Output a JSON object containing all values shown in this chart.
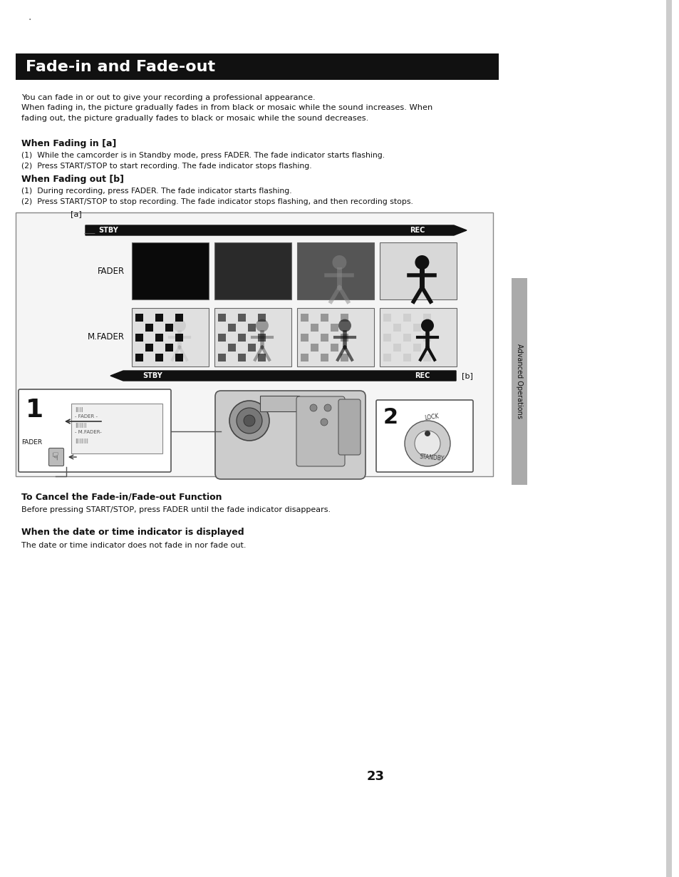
{
  "page_bg": "#ffffff",
  "title_bg": "#111111",
  "title_text": "Fade-in and Fade-out",
  "title_color": "#ffffff",
  "title_fontsize": 16,
  "body_text_intro": "You can fade in or out to give your recording a professional appearance.\nWhen fading in, the picture gradually fades in from black or mosaic while the sound increases. When\nfading out, the picture gradually fades to black or mosaic while the sound decreases.",
  "section1_title": "When Fading in [a]",
  "section1_body1": "(1)  While the camcorder is in Standby mode, press FADER. The fade indicator starts flashing.",
  "section1_body2": "(2)  Press START/STOP to start recording. The fade indicator stops flashing.",
  "section2_title": "When Fading out [b]",
  "section2_body1": "(1)  During recording, press FADER. The fade indicator starts flashing.",
  "section2_body2": "(2)  Press START/STOP to stop recording. The fade indicator stops flashing, and then recording stops.",
  "section3_title": "To Cancel the Fade-in/Fade-out Function",
  "section3_body": "Before pressing START/STOP, press FADER until the fade indicator disappears.",
  "section4_title": "When the date or time indicator is displayed",
  "section4_body": "The date or time indicator does not fade in nor fade out.",
  "page_number": "23",
  "sidebar_text": "Advanced Operations"
}
